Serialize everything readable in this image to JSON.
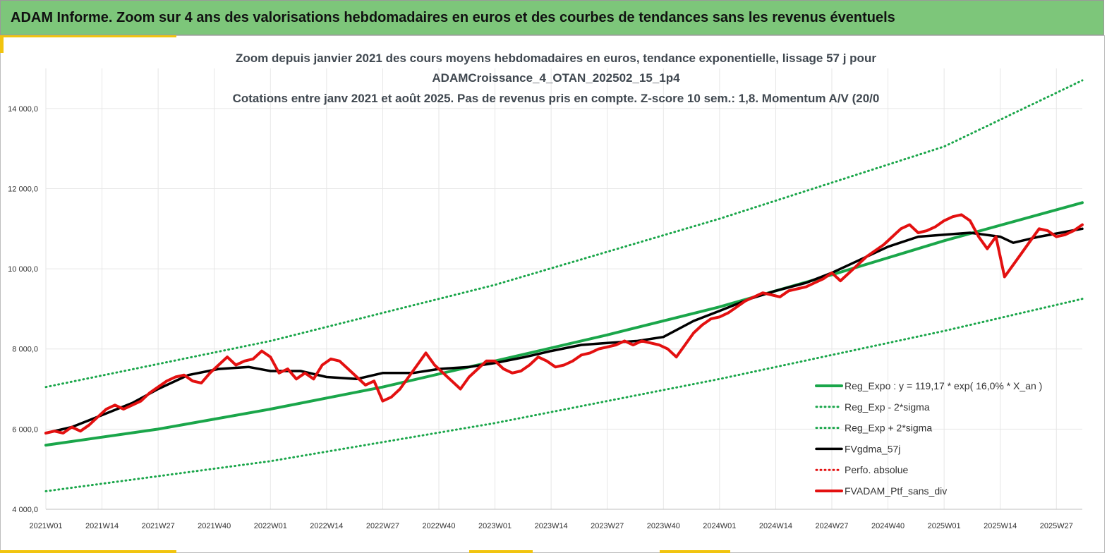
{
  "page": {
    "banner_title": "ADAM Informe. Zoom sur 4 ans des valorisations hebdomadaires en euros et des courbes de tendances sans les revenus éventuels"
  },
  "colors": {
    "banner_bg": "#7dc67a",
    "trend_green": "#1aa64a",
    "dotted_green": "#1aa64a",
    "ma_black": "#000000",
    "portfolio_red": "#e31010",
    "accent_yellow": "#f1c40f"
  },
  "chart_data": {
    "type": "line",
    "title_lines": [
      "Zoom depuis janvier 2021 des cours moyens hebdomadaires  en euros, tendance exponentielle, lissage 57 j pour",
      "ADAMCroissance_4_OTAN_202502_15_1p4",
      "Cotations entre janv 2021 et août 2025. Pas de revenus pris en compte. Z-score 10 sem.: 1,8. Momentum A/V (20/0"
    ],
    "x_ticks": [
      "2021W01",
      "2021W14",
      "2021W27",
      "2021W40",
      "2022W01",
      "2022W14",
      "2022W27",
      "2022W40",
      "2023W01",
      "2023W14",
      "2023W27",
      "2023W40",
      "2024W01",
      "2024W14",
      "2024W27",
      "2024W40",
      "2025W01",
      "2025W14",
      "2025W27"
    ],
    "x_range_weeks": [
      0,
      240
    ],
    "y_ticks": [
      "4 000,0",
      "6 000,0",
      "8 000,0",
      "10 000,0",
      "12 000,0",
      "14 000,0"
    ],
    "y_tick_values": [
      4000,
      6000,
      8000,
      10000,
      12000,
      14000
    ],
    "ylim": [
      4000,
      15000
    ],
    "grid": true,
    "legend_position": "bottom-right",
    "series": [
      {
        "name": "Reg_Expo : y = 119,17 * exp( 16,0% *  X_an )",
        "style": "solid-thick",
        "color": "#1aa64a",
        "points": [
          [
            0,
            5600
          ],
          [
            26,
            6000
          ],
          [
            52,
            6500
          ],
          [
            78,
            7050
          ],
          [
            104,
            7700
          ],
          [
            130,
            8350
          ],
          [
            156,
            9050
          ],
          [
            182,
            9850
          ],
          [
            208,
            10700
          ],
          [
            240,
            11650
          ]
        ]
      },
      {
        "name": "Reg_Exp - 2*sigma",
        "style": "dotted",
        "color": "#1aa64a",
        "points": [
          [
            0,
            4450
          ],
          [
            52,
            5200
          ],
          [
            104,
            6150
          ],
          [
            156,
            7250
          ],
          [
            208,
            8450
          ],
          [
            240,
            9250
          ]
        ]
      },
      {
        "name": "Reg_Exp + 2*sigma",
        "style": "dotted",
        "color": "#1aa64a",
        "points": [
          [
            0,
            7050
          ],
          [
            52,
            8200
          ],
          [
            104,
            9600
          ],
          [
            156,
            11250
          ],
          [
            208,
            13050
          ],
          [
            240,
            14700
          ]
        ]
      },
      {
        "name": "FVgdma_57j",
        "style": "solid",
        "color": "#000000",
        "points": [
          [
            0,
            5900
          ],
          [
            6,
            6050
          ],
          [
            13,
            6350
          ],
          [
            20,
            6650
          ],
          [
            26,
            7000
          ],
          [
            33,
            7350
          ],
          [
            40,
            7500
          ],
          [
            47,
            7550
          ],
          [
            52,
            7450
          ],
          [
            59,
            7450
          ],
          [
            65,
            7300
          ],
          [
            72,
            7250
          ],
          [
            78,
            7400
          ],
          [
            85,
            7400
          ],
          [
            91,
            7500
          ],
          [
            98,
            7550
          ],
          [
            104,
            7650
          ],
          [
            111,
            7800
          ],
          [
            117,
            7950
          ],
          [
            124,
            8100
          ],
          [
            130,
            8150
          ],
          [
            137,
            8200
          ],
          [
            143,
            8300
          ],
          [
            150,
            8700
          ],
          [
            156,
            8950
          ],
          [
            163,
            9250
          ],
          [
            169,
            9450
          ],
          [
            176,
            9650
          ],
          [
            182,
            9900
          ],
          [
            189,
            10250
          ],
          [
            195,
            10550
          ],
          [
            202,
            10800
          ],
          [
            208,
            10850
          ],
          [
            214,
            10900
          ],
          [
            221,
            10800
          ],
          [
            224,
            10650
          ],
          [
            230,
            10800
          ],
          [
            240,
            11000
          ]
        ]
      },
      {
        "name": "Perfo. absolue",
        "style": "dotted",
        "color": "#e31010",
        "points": []
      },
      {
        "name": "FVADAM_Ptf_sans_div",
        "style": "solid-thick",
        "color": "#e31010",
        "points": [
          [
            0,
            5900
          ],
          [
            2,
            5950
          ],
          [
            4,
            5900
          ],
          [
            6,
            6050
          ],
          [
            8,
            5950
          ],
          [
            10,
            6100
          ],
          [
            12,
            6300
          ],
          [
            14,
            6500
          ],
          [
            16,
            6600
          ],
          [
            18,
            6500
          ],
          [
            20,
            6600
          ],
          [
            22,
            6700
          ],
          [
            24,
            6900
          ],
          [
            26,
            7050
          ],
          [
            28,
            7200
          ],
          [
            30,
            7300
          ],
          [
            32,
            7350
          ],
          [
            34,
            7200
          ],
          [
            36,
            7150
          ],
          [
            38,
            7400
          ],
          [
            40,
            7600
          ],
          [
            42,
            7800
          ],
          [
            44,
            7600
          ],
          [
            46,
            7700
          ],
          [
            48,
            7750
          ],
          [
            50,
            7950
          ],
          [
            52,
            7800
          ],
          [
            54,
            7400
          ],
          [
            56,
            7500
          ],
          [
            58,
            7250
          ],
          [
            60,
            7400
          ],
          [
            62,
            7250
          ],
          [
            64,
            7600
          ],
          [
            66,
            7750
          ],
          [
            68,
            7700
          ],
          [
            70,
            7500
          ],
          [
            72,
            7300
          ],
          [
            74,
            7100
          ],
          [
            76,
            7200
          ],
          [
            78,
            6700
          ],
          [
            80,
            6800
          ],
          [
            82,
            7000
          ],
          [
            84,
            7300
          ],
          [
            86,
            7600
          ],
          [
            88,
            7900
          ],
          [
            90,
            7600
          ],
          [
            92,
            7400
          ],
          [
            94,
            7200
          ],
          [
            96,
            7000
          ],
          [
            98,
            7300
          ],
          [
            100,
            7500
          ],
          [
            102,
            7700
          ],
          [
            104,
            7700
          ],
          [
            106,
            7500
          ],
          [
            108,
            7400
          ],
          [
            110,
            7450
          ],
          [
            112,
            7600
          ],
          [
            114,
            7800
          ],
          [
            116,
            7700
          ],
          [
            118,
            7550
          ],
          [
            120,
            7600
          ],
          [
            122,
            7700
          ],
          [
            124,
            7850
          ],
          [
            126,
            7900
          ],
          [
            128,
            8000
          ],
          [
            130,
            8050
          ],
          [
            132,
            8100
          ],
          [
            134,
            8200
          ],
          [
            136,
            8100
          ],
          [
            138,
            8200
          ],
          [
            140,
            8150
          ],
          [
            142,
            8100
          ],
          [
            144,
            8000
          ],
          [
            146,
            7800
          ],
          [
            148,
            8100
          ],
          [
            150,
            8400
          ],
          [
            152,
            8600
          ],
          [
            154,
            8750
          ],
          [
            156,
            8800
          ],
          [
            158,
            8900
          ],
          [
            160,
            9050
          ],
          [
            162,
            9200
          ],
          [
            164,
            9300
          ],
          [
            166,
            9400
          ],
          [
            168,
            9350
          ],
          [
            170,
            9300
          ],
          [
            172,
            9450
          ],
          [
            174,
            9500
          ],
          [
            176,
            9550
          ],
          [
            178,
            9650
          ],
          [
            180,
            9750
          ],
          [
            182,
            9900
          ],
          [
            184,
            9700
          ],
          [
            186,
            9900
          ],
          [
            188,
            10100
          ],
          [
            190,
            10300
          ],
          [
            192,
            10450
          ],
          [
            194,
            10600
          ],
          [
            196,
            10800
          ],
          [
            198,
            11000
          ],
          [
            200,
            11100
          ],
          [
            202,
            10900
          ],
          [
            204,
            10950
          ],
          [
            206,
            11050
          ],
          [
            208,
            11200
          ],
          [
            210,
            11300
          ],
          [
            212,
            11350
          ],
          [
            214,
            11200
          ],
          [
            216,
            10800
          ],
          [
            218,
            10500
          ],
          [
            220,
            10800
          ],
          [
            222,
            9800
          ],
          [
            224,
            10100
          ],
          [
            226,
            10400
          ],
          [
            228,
            10700
          ],
          [
            230,
            11000
          ],
          [
            232,
            10950
          ],
          [
            234,
            10800
          ],
          [
            236,
            10850
          ],
          [
            238,
            10950
          ],
          [
            240,
            11100
          ]
        ]
      }
    ]
  }
}
